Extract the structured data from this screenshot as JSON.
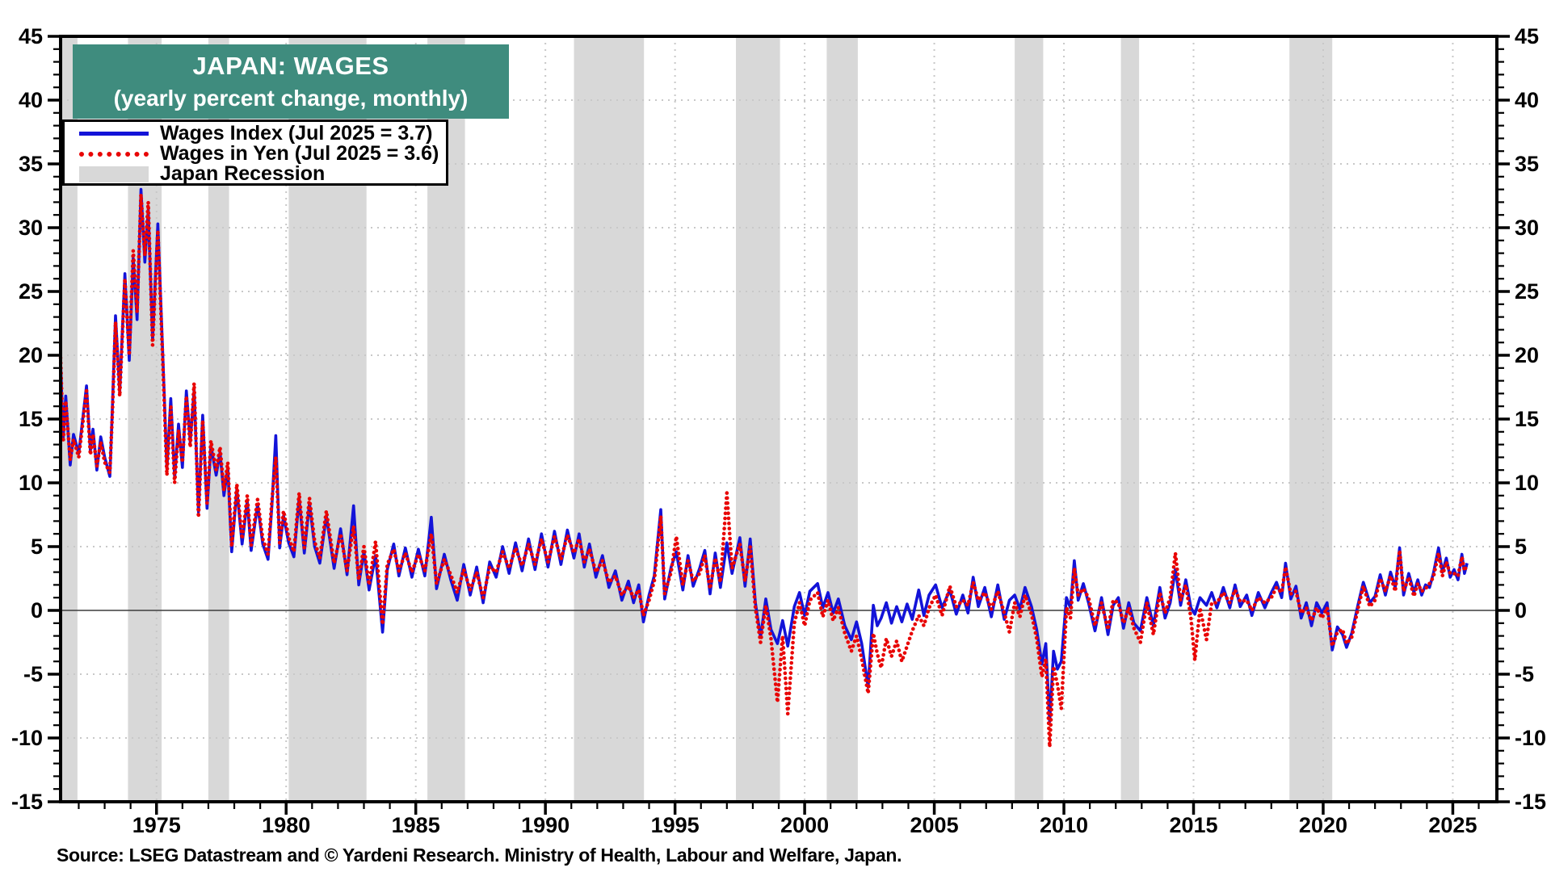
{
  "header": {
    "title": "JAPAN: WAGES",
    "subtitle": "(yearly percent change, monthly)",
    "bg_color": "#3f8c7e",
    "text_color": "#ffffff"
  },
  "legend": {
    "items": [
      {
        "label": "Wages Index (Jul 2025 = 3.7)",
        "type": "solid-line",
        "color": "#1313d8"
      },
      {
        "label": "Wages in Yen (Jul 2025 = 3.6)",
        "type": "dotted-line",
        "color": "#e80505"
      },
      {
        "label": "Japan Recession",
        "type": "band",
        "color": "#d8d8d8"
      }
    ]
  },
  "source_note": "Source: LSEG Datastream and © Yardeni Research. Ministry of Health, Labour and Welfare, Japan.",
  "chart_data": {
    "type": "line",
    "title": "JAPAN: WAGES",
    "subtitle": "(yearly percent change, monthly)",
    "xlabel": "",
    "ylabel": "yearly percent change",
    "x_axis": {
      "min": 1971.3,
      "max": 2026.7,
      "major_ticks": [
        1975,
        1980,
        1985,
        1990,
        1995,
        2000,
        2005,
        2010,
        2015,
        2020,
        2025
      ],
      "minor_tick_interval": 1,
      "gridlines_at_major": true
    },
    "y_axis": {
      "min": -15,
      "max": 45,
      "major_tick_interval": 5,
      "minor_tick_interval": 1,
      "labels_both_sides": true,
      "tick_labels": [
        45,
        40,
        35,
        30,
        25,
        20,
        15,
        10,
        5,
        0,
        -5,
        -10,
        -15
      ]
    },
    "grid": "dotted-light-gray",
    "zero_line": true,
    "legend_position": "top-left",
    "colors": {
      "band": "#d8d8d8",
      "grid": "#c8c8c8",
      "zero_line": "#3c3c3c",
      "frame": "#000000"
    },
    "series": [
      {
        "name": "Wages Index (Jul 2025 = 3.7)",
        "color": "#1313d8",
        "style": "solid",
        "width": 3.6,
        "last_value": 3.7,
        "last_period": "Jul 2025"
      },
      {
        "name": "Wages in Yen (Jul 2025 = 3.6)",
        "color": "#e80505",
        "style": "dotted",
        "width": 4.6,
        "last_value": 3.6,
        "last_period": "Jul 2025"
      }
    ],
    "recessions": [
      [
        1971.3,
        1971.95
      ],
      [
        1973.9,
        1975.2
      ],
      [
        1977.0,
        1977.8
      ],
      [
        1980.1,
        1983.1
      ],
      [
        1985.45,
        1986.9
      ],
      [
        1991.1,
        1993.8
      ],
      [
        1997.35,
        1999.05
      ],
      [
        2000.85,
        2002.05
      ],
      [
        2008.1,
        2009.2
      ],
      [
        2012.2,
        2012.9
      ],
      [
        2018.7,
        2020.35
      ]
    ],
    "points_format": [
      "decimal_year",
      "wages_index_yoy_pct",
      "wages_in_yen_yoy_pct"
    ],
    "points": [
      [
        1971.3,
        19.5,
        19.8
      ],
      [
        1971.4,
        13.5,
        13.2
      ],
      [
        1971.5,
        16.8,
        16.4
      ],
      [
        1971.67,
        11.4,
        11.8
      ],
      [
        1971.8,
        13.8,
        13.4
      ],
      [
        1972.0,
        12.3,
        12.0
      ],
      [
        1972.3,
        17.6,
        17.2
      ],
      [
        1972.45,
        12.5,
        12.2
      ],
      [
        1972.55,
        14.2,
        13.8
      ],
      [
        1972.7,
        11.0,
        11.3
      ],
      [
        1972.85,
        13.6,
        13.2
      ],
      [
        1973.0,
        12.0,
        11.6
      ],
      [
        1973.2,
        10.5,
        10.8
      ],
      [
        1973.3,
        16.0,
        15.6
      ],
      [
        1973.42,
        23.1,
        22.6
      ],
      [
        1973.58,
        17.1,
        16.8
      ],
      [
        1973.78,
        26.4,
        26.0
      ],
      [
        1973.95,
        19.6,
        20.0
      ],
      [
        1974.1,
        27.6,
        28.2
      ],
      [
        1974.25,
        22.8,
        23.4
      ],
      [
        1974.4,
        33.0,
        32.6
      ],
      [
        1974.55,
        27.3,
        27.8
      ],
      [
        1974.68,
        31.4,
        32.0
      ],
      [
        1974.85,
        21.2,
        20.8
      ],
      [
        1975.05,
        30.3,
        29.8
      ],
      [
        1975.25,
        19.5,
        19.0
      ],
      [
        1975.4,
        11.1,
        10.6
      ],
      [
        1975.55,
        16.6,
        16.1
      ],
      [
        1975.7,
        10.4,
        10.0
      ],
      [
        1975.85,
        14.6,
        14.1
      ],
      [
        1976.0,
        11.2,
        11.6
      ],
      [
        1976.15,
        17.2,
        16.8
      ],
      [
        1976.3,
        13.2,
        12.8
      ],
      [
        1976.45,
        17.3,
        17.8
      ],
      [
        1976.62,
        7.7,
        7.3
      ],
      [
        1976.78,
        15.3,
        14.9
      ],
      [
        1976.95,
        8.0,
        8.4
      ],
      [
        1977.1,
        12.9,
        13.3
      ],
      [
        1977.3,
        10.6,
        11.0
      ],
      [
        1977.45,
        12.4,
        12.8
      ],
      [
        1977.6,
        9.0,
        9.4
      ],
      [
        1977.75,
        11.2,
        11.6
      ],
      [
        1977.9,
        4.6,
        5.0
      ],
      [
        1978.1,
        9.5,
        9.9
      ],
      [
        1978.3,
        5.2,
        5.6
      ],
      [
        1978.5,
        8.6,
        9.0
      ],
      [
        1978.65,
        4.7,
        5.1
      ],
      [
        1978.9,
        8.3,
        8.7
      ],
      [
        1979.1,
        5.2,
        5.6
      ],
      [
        1979.3,
        4.0,
        4.4
      ],
      [
        1979.45,
        8.2,
        8.6
      ],
      [
        1979.6,
        13.7,
        12.0
      ],
      [
        1979.75,
        4.9,
        5.3
      ],
      [
        1979.9,
        7.4,
        7.8
      ],
      [
        1980.1,
        5.3,
        5.7
      ],
      [
        1980.3,
        4.2,
        4.6
      ],
      [
        1980.5,
        8.8,
        9.2
      ],
      [
        1980.7,
        4.5,
        4.9
      ],
      [
        1980.9,
        8.4,
        8.8
      ],
      [
        1981.1,
        5.0,
        5.4
      ],
      [
        1981.3,
        3.7,
        4.1
      ],
      [
        1981.55,
        7.4,
        7.8
      ],
      [
        1981.85,
        3.3,
        3.7
      ],
      [
        1982.1,
        6.4,
        6.0
      ],
      [
        1982.35,
        2.8,
        3.1
      ],
      [
        1982.6,
        8.2,
        6.6
      ],
      [
        1982.8,
        2.0,
        2.4
      ],
      [
        1983.0,
        4.6,
        5.0
      ],
      [
        1983.2,
        1.6,
        2.0
      ],
      [
        1983.45,
        4.3,
        5.4
      ],
      [
        1983.72,
        -1.7,
        -1.1
      ],
      [
        1983.9,
        3.2,
        3.6
      ],
      [
        1984.15,
        5.2,
        4.8
      ],
      [
        1984.35,
        2.7,
        3.1
      ],
      [
        1984.6,
        4.9,
        4.5
      ],
      [
        1984.85,
        2.6,
        3.0
      ],
      [
        1985.1,
        4.8,
        4.4
      ],
      [
        1985.35,
        2.7,
        3.1
      ],
      [
        1985.6,
        7.3,
        6.0
      ],
      [
        1985.8,
        1.7,
        2.1
      ],
      [
        1986.1,
        4.4,
        4.0
      ],
      [
        1986.35,
        2.4,
        2.8
      ],
      [
        1986.6,
        0.8,
        1.4
      ],
      [
        1986.85,
        3.6,
        3.2
      ],
      [
        1987.1,
        1.2,
        1.6
      ],
      [
        1987.35,
        3.4,
        3.0
      ],
      [
        1987.6,
        0.6,
        1.0
      ],
      [
        1987.85,
        3.8,
        3.4
      ],
      [
        1988.1,
        2.6,
        3.0
      ],
      [
        1988.35,
        5.0,
        4.6
      ],
      [
        1988.6,
        2.9,
        3.3
      ],
      [
        1988.85,
        5.3,
        4.9
      ],
      [
        1989.1,
        3.1,
        3.5
      ],
      [
        1989.35,
        5.6,
        5.2
      ],
      [
        1989.6,
        3.2,
        3.6
      ],
      [
        1989.85,
        6.0,
        5.6
      ],
      [
        1990.1,
        3.4,
        3.8
      ],
      [
        1990.35,
        6.2,
        5.8
      ],
      [
        1990.6,
        3.6,
        4.0
      ],
      [
        1990.85,
        6.3,
        5.9
      ],
      [
        1991.1,
        4.1,
        4.5
      ],
      [
        1991.3,
        6.0,
        5.6
      ],
      [
        1991.5,
        3.4,
        3.8
      ],
      [
        1991.7,
        5.2,
        4.8
      ],
      [
        1991.95,
        2.6,
        3.0
      ],
      [
        1992.2,
        4.3,
        3.9
      ],
      [
        1992.45,
        1.8,
        2.2
      ],
      [
        1992.7,
        3.1,
        2.7
      ],
      [
        1992.95,
        0.8,
        1.2
      ],
      [
        1993.2,
        2.3,
        1.9
      ],
      [
        1993.4,
        0.6,
        1.0
      ],
      [
        1993.6,
        2.0,
        1.6
      ],
      [
        1993.78,
        -0.9,
        -0.4
      ],
      [
        1994.0,
        1.2,
        0.8
      ],
      [
        1994.2,
        2.7,
        2.3
      ],
      [
        1994.45,
        7.9,
        7.4
      ],
      [
        1994.6,
        0.9,
        1.3
      ],
      [
        1994.85,
        3.4,
        3.0
      ],
      [
        1995.05,
        4.6,
        5.8
      ],
      [
        1995.3,
        1.6,
        2.0
      ],
      [
        1995.5,
        4.3,
        3.9
      ],
      [
        1995.7,
        1.9,
        2.3
      ],
      [
        1995.95,
        3.3,
        2.9
      ],
      [
        1996.15,
        4.7,
        4.3
      ],
      [
        1996.35,
        1.3,
        1.7
      ],
      [
        1996.55,
        4.5,
        4.1
      ],
      [
        1996.75,
        1.8,
        2.2
      ],
      [
        1997.0,
        5.3,
        9.2
      ],
      [
        1997.2,
        2.9,
        3.3
      ],
      [
        1997.5,
        5.7,
        5.2
      ],
      [
        1997.7,
        1.9,
        2.3
      ],
      [
        1997.9,
        5.6,
        5.0
      ],
      [
        1998.1,
        0.6,
        0.2
      ],
      [
        1998.3,
        -2.1,
        -2.5
      ],
      [
        1998.5,
        0.9,
        0.4
      ],
      [
        1998.7,
        -1.5,
        -2.2
      ],
      [
        1998.95,
        -2.6,
        -7.2
      ],
      [
        1999.15,
        -0.8,
        -2.0
      ],
      [
        1999.35,
        -2.8,
        -8.1
      ],
      [
        1999.6,
        0.3,
        -1.0
      ],
      [
        1999.8,
        1.4,
        0.6
      ],
      [
        2000.0,
        -0.4,
        -1.2
      ],
      [
        2000.2,
        1.5,
        0.8
      ],
      [
        2000.5,
        2.1,
        1.4
      ],
      [
        2000.7,
        0.2,
        -0.5
      ],
      [
        2000.9,
        1.4,
        0.8
      ],
      [
        2001.1,
        -0.2,
        -0.8
      ],
      [
        2001.3,
        0.9,
        0.2
      ],
      [
        2001.55,
        -1.2,
        -1.8
      ],
      [
        2001.8,
        -2.3,
        -3.2
      ],
      [
        2002.0,
        -0.9,
        -2.0
      ],
      [
        2002.2,
        -2.6,
        -3.8
      ],
      [
        2002.45,
        -6.0,
        -6.5
      ],
      [
        2002.65,
        0.4,
        -1.8
      ],
      [
        2002.8,
        -1.2,
        -3.4
      ],
      [
        2002.95,
        -0.6,
        -4.5
      ],
      [
        2003.15,
        0.6,
        -2.2
      ],
      [
        2003.35,
        -1.0,
        -3.6
      ],
      [
        2003.55,
        0.3,
        -2.4
      ],
      [
        2003.75,
        -0.9,
        -4.0
      ],
      [
        2003.95,
        0.5,
        -2.8
      ],
      [
        2004.15,
        -0.7,
        -1.6
      ],
      [
        2004.4,
        1.6,
        -0.4
      ],
      [
        2004.6,
        -0.4,
        -1.2
      ],
      [
        2004.8,
        1.2,
        0.2
      ],
      [
        2005.05,
        2.0,
        1.2
      ],
      [
        2005.3,
        0.2,
        -0.4
      ],
      [
        2005.6,
        1.6,
        1.9
      ],
      [
        2005.85,
        -0.3,
        0.3
      ],
      [
        2006.1,
        1.2,
        0.8
      ],
      [
        2006.3,
        -0.2,
        0.4
      ],
      [
        2006.5,
        2.6,
        2.2
      ],
      [
        2006.7,
        0.3,
        0.8
      ],
      [
        2006.95,
        1.8,
        1.4
      ],
      [
        2007.2,
        -0.5,
        0.1
      ],
      [
        2007.45,
        2.0,
        1.5
      ],
      [
        2007.7,
        -0.7,
        -0.2
      ],
      [
        2007.9,
        0.8,
        -1.7
      ],
      [
        2008.1,
        1.2,
        0.6
      ],
      [
        2008.3,
        0.1,
        -0.5
      ],
      [
        2008.5,
        1.8,
        1.2
      ],
      [
        2008.75,
        0.3,
        -0.3
      ],
      [
        2008.95,
        -1.5,
        -2.2
      ],
      [
        2009.15,
        -4.2,
        -5.2
      ],
      [
        2009.3,
        -2.6,
        -3.8
      ],
      [
        2009.45,
        -8.7,
        -10.7
      ],
      [
        2009.6,
        -3.2,
        -4.4
      ],
      [
        2009.75,
        -4.6,
        -5.8
      ],
      [
        2009.9,
        -4.0,
        -7.7
      ],
      [
        2010.1,
        1.0,
        0.2
      ],
      [
        2010.25,
        0.2,
        -0.6
      ],
      [
        2010.4,
        3.9,
        3.3
      ],
      [
        2010.55,
        0.8,
        1.2
      ],
      [
        2010.75,
        2.1,
        1.7
      ],
      [
        2010.95,
        0.6,
        1.0
      ],
      [
        2011.2,
        -1.6,
        -1.2
      ],
      [
        2011.45,
        1.0,
        0.6
      ],
      [
        2011.7,
        -1.9,
        -1.5
      ],
      [
        2011.9,
        0.4,
        0.8
      ],
      [
        2012.1,
        1.0,
        0.6
      ],
      [
        2012.3,
        -1.4,
        -1.0
      ],
      [
        2012.5,
        0.6,
        0.2
      ],
      [
        2012.7,
        -1.0,
        -1.4
      ],
      [
        2012.95,
        -1.6,
        -2.5
      ],
      [
        2013.2,
        1.0,
        0.6
      ],
      [
        2013.45,
        -1.2,
        -1.9
      ],
      [
        2013.7,
        1.8,
        1.4
      ],
      [
        2013.9,
        -0.6,
        -0.2
      ],
      [
        2014.1,
        0.6,
        1.0
      ],
      [
        2014.3,
        3.2,
        4.5
      ],
      [
        2014.5,
        0.4,
        0.8
      ],
      [
        2014.7,
        2.4,
        2.0
      ],
      [
        2014.9,
        0.2,
        -0.6
      ],
      [
        2015.05,
        -0.3,
        -3.9
      ],
      [
        2015.25,
        1.0,
        0.2
      ],
      [
        2015.5,
        0.4,
        -2.3
      ],
      [
        2015.7,
        1.4,
        0.6
      ],
      [
        2015.9,
        0.2,
        0.6
      ],
      [
        2016.15,
        1.8,
        1.4
      ],
      [
        2016.4,
        0.2,
        0.6
      ],
      [
        2016.6,
        2.0,
        1.6
      ],
      [
        2016.8,
        0.3,
        0.7
      ],
      [
        2017.05,
        1.2,
        0.8
      ],
      [
        2017.25,
        -0.4,
        0.0
      ],
      [
        2017.5,
        1.4,
        1.0
      ],
      [
        2017.75,
        0.2,
        0.6
      ],
      [
        2018.0,
        1.4,
        1.0
      ],
      [
        2018.2,
        2.2,
        1.8
      ],
      [
        2018.4,
        1.0,
        1.4
      ],
      [
        2018.55,
        3.7,
        3.4
      ],
      [
        2018.75,
        0.9,
        1.3
      ],
      [
        2018.95,
        1.9,
        1.5
      ],
      [
        2019.15,
        -0.6,
        -0.2
      ],
      [
        2019.35,
        0.6,
        0.2
      ],
      [
        2019.55,
        -1.2,
        -0.8
      ],
      [
        2019.75,
        0.6,
        0.2
      ],
      [
        2019.95,
        -0.2,
        -0.6
      ],
      [
        2020.15,
        0.6,
        0.2
      ],
      [
        2020.35,
        -3.1,
        -2.8
      ],
      [
        2020.55,
        -1.3,
        -1.7
      ],
      [
        2020.75,
        -1.9,
        -1.5
      ],
      [
        2020.9,
        -2.9,
        -2.6
      ],
      [
        2021.1,
        -1.8,
        -2.1
      ],
      [
        2021.35,
        0.5,
        0.2
      ],
      [
        2021.55,
        2.2,
        1.9
      ],
      [
        2021.8,
        0.6,
        0.3
      ],
      [
        2022.0,
        1.1,
        0.8
      ],
      [
        2022.2,
        2.8,
        2.5
      ],
      [
        2022.4,
        1.2,
        1.5
      ],
      [
        2022.6,
        3.0,
        2.7
      ],
      [
        2022.78,
        1.8,
        1.5
      ],
      [
        2022.95,
        4.9,
        4.7
      ],
      [
        2023.1,
        1.2,
        1.5
      ],
      [
        2023.3,
        2.9,
        2.6
      ],
      [
        2023.5,
        1.4,
        1.1
      ],
      [
        2023.65,
        2.4,
        2.1
      ],
      [
        2023.8,
        1.2,
        1.5
      ],
      [
        2023.95,
        2.0,
        1.7
      ],
      [
        2024.1,
        1.8,
        2.1
      ],
      [
        2024.25,
        2.9,
        2.6
      ],
      [
        2024.45,
        4.9,
        4.5
      ],
      [
        2024.6,
        3.0,
        2.7
      ],
      [
        2024.75,
        4.1,
        3.8
      ],
      [
        2024.9,
        2.6,
        2.9
      ],
      [
        2025.05,
        3.2,
        2.9
      ],
      [
        2025.2,
        2.4,
        2.7
      ],
      [
        2025.35,
        4.4,
        4.2
      ],
      [
        2025.45,
        2.9,
        3.1
      ],
      [
        2025.55,
        3.7,
        3.6
      ]
    ]
  }
}
